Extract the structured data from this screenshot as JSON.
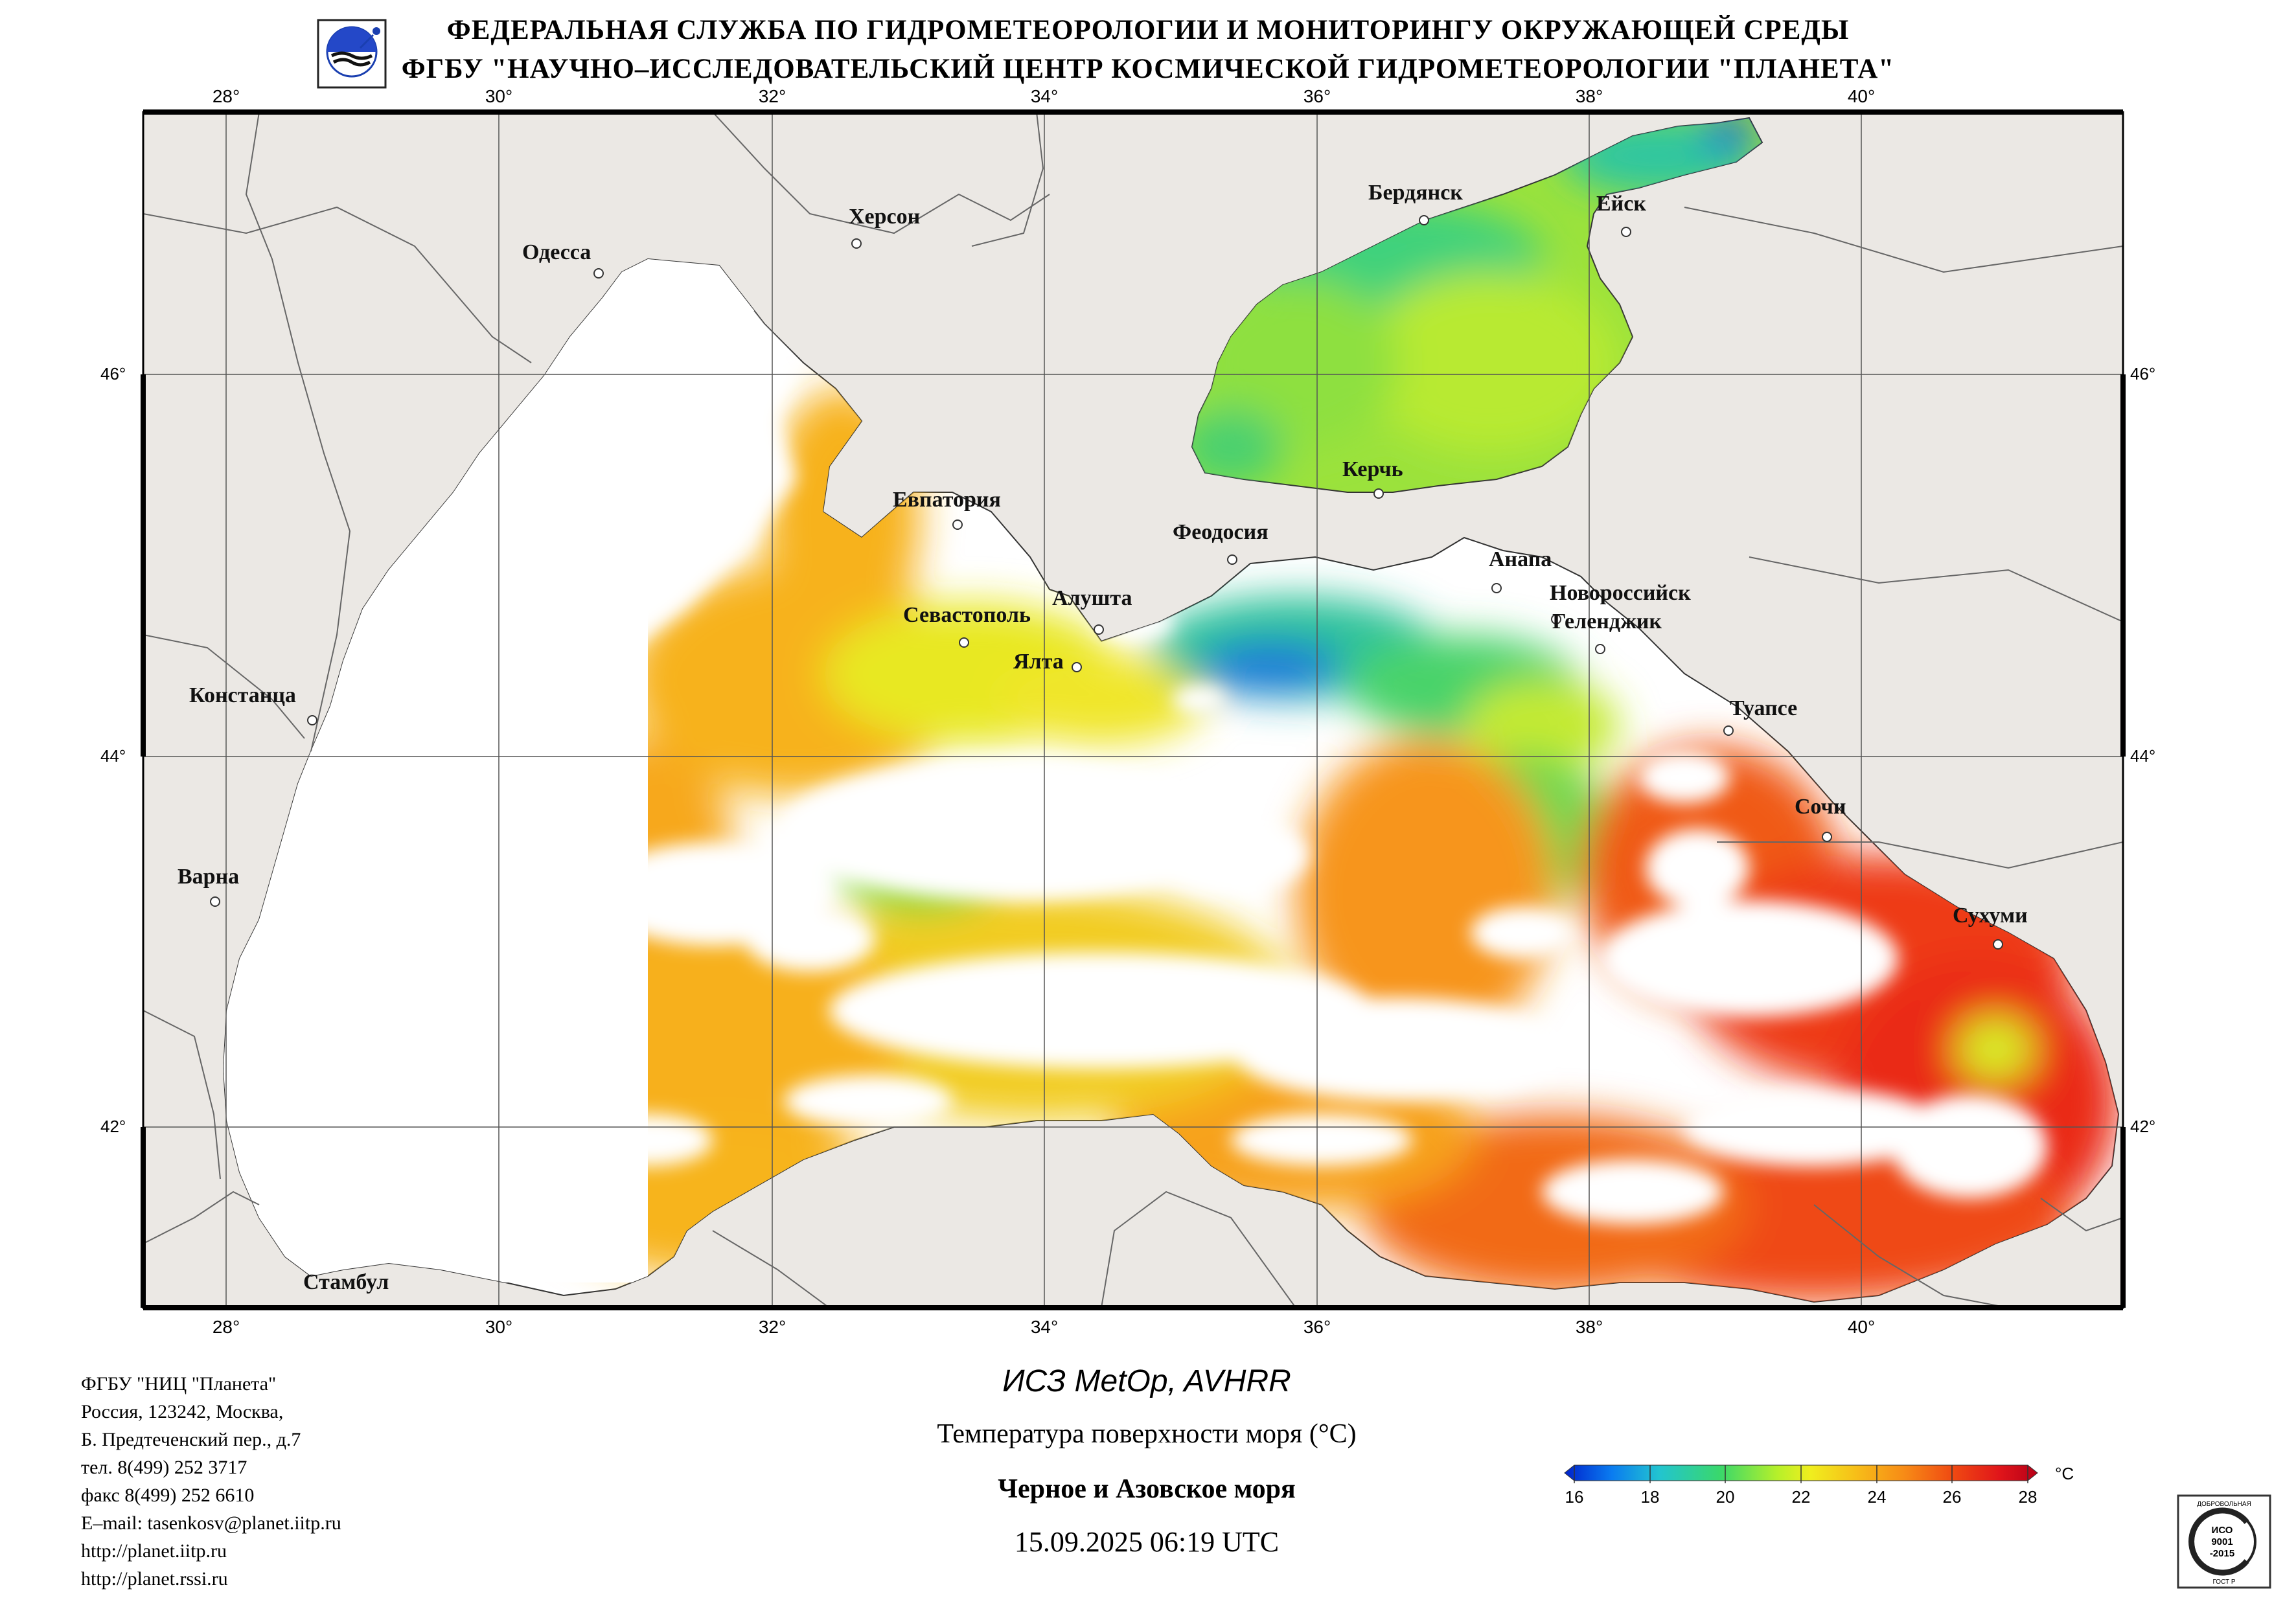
{
  "header": {
    "line1": "ФЕДЕРАЛЬНАЯ СЛУЖБА ПО ГИДРОМЕТЕОРОЛОГИИ И МОНИТОРИНГУ ОКРУЖАЮЩЕЙ СРЕДЫ",
    "line2": "ФГБУ \"НАУЧНО–ИССЛЕДОВАТЕЛЬСКИЙ ЦЕНТР КОСМИЧЕСКОЙ ГИДРОМЕТЕОРОЛОГИИ \"ПЛАНЕТА\""
  },
  "map": {
    "lon_ticks": [
      "28°",
      "30°",
      "32°",
      "34°",
      "36°",
      "38°",
      "40°"
    ],
    "lat_ticks": [
      "46°",
      "44°",
      "42°"
    ],
    "extent": {
      "lon_min": 27.4,
      "lon_max": 41.95,
      "lat_min": 41.0,
      "lat_max": 47.35
    },
    "cities": [
      {
        "name": "Одесса",
        "lon": 30.75,
        "lat": 46.47
      },
      {
        "name": "Херсон",
        "lon": 32.6,
        "lat": 46.65
      },
      {
        "name": "Бердянск",
        "lon": 36.8,
        "lat": 46.78
      },
      {
        "name": "Ейск",
        "lon": 38.3,
        "lat": 46.7
      },
      {
        "name": "Евпатория",
        "lon": 33.37,
        "lat": 45.2
      },
      {
        "name": "Керчь",
        "lon": 36.47,
        "lat": 45.36
      },
      {
        "name": "Феодосия",
        "lon": 35.38,
        "lat": 45.04
      },
      {
        "name": "Анапа",
        "lon": 37.32,
        "lat": 44.9
      },
      {
        "name": "Севастополь",
        "lon": 33.52,
        "lat": 44.6
      },
      {
        "name": "Алушта",
        "lon": 34.42,
        "lat": 44.67
      },
      {
        "name": "Ялта",
        "lon": 34.16,
        "lat": 44.5
      },
      {
        "name": "Новороссийск",
        "lon": 37.78,
        "lat": 44.72
      },
      {
        "name": "Геленджик",
        "lon": 38.07,
        "lat": 44.56
      },
      {
        "name": "Констанца",
        "lon": 28.65,
        "lat": 44.17
      },
      {
        "name": "Туапсе",
        "lon": 39.07,
        "lat": 44.1
      },
      {
        "name": "Сочи",
        "lon": 39.72,
        "lat": 43.58
      },
      {
        "name": "Варна",
        "lon": 27.92,
        "lat": 43.2
      },
      {
        "name": "Сухуми",
        "lon": 41.0,
        "lat": 43.0
      },
      {
        "name": "Стамбул",
        "lon": 29.0,
        "lat": 41.0
      }
    ],
    "colors": {
      "land": "#ebe8e4",
      "grid": "#555555",
      "cloud": "#ffffff",
      "sst_cold": "#1f6fe0",
      "sst_cool": "#35d28a",
      "sst_mid": "#d8f027",
      "sst_warm": "#f7b21a",
      "sst_hot": "#ef3b12"
    }
  },
  "footer": {
    "org_lines": [
      "ФГБУ \"НИЦ \"Планета\"",
      "Россия, 123242, Москва,",
      "Б. Предтеченский пер., д.7",
      "тел. 8(499) 252 3717",
      "факс 8(499) 252 6610",
      "E–mail: tasenkosv@planet.iitp.ru",
      "http://planet.iitp.ru",
      "http://planet.rssi.ru"
    ],
    "satellite": "ИСЗ MetOp, AVHRR",
    "product": "Температура поверхности моря (°C)",
    "region": "Черное и Азовское моря",
    "datetime": "15.09.2025 06:19 UTC"
  },
  "colorbar": {
    "ticks": [
      "16",
      "18",
      "20",
      "22",
      "24",
      "26",
      "28"
    ],
    "unit": "°C",
    "min": 16,
    "max": 28,
    "stops": [
      "#0022cc",
      "#0a7cf0",
      "#22c4d0",
      "#3ad86a",
      "#b6f02a",
      "#f0ee1e",
      "#f7bc18",
      "#f78a16",
      "#f04a12",
      "#e0151a",
      "#b80018"
    ]
  },
  "iso_badge": {
    "top": "ДОБРОВОЛЬНАЯ",
    "lines": [
      "ИСО",
      "9001",
      "-2015"
    ],
    "bottom": "ГОСТ Р"
  }
}
